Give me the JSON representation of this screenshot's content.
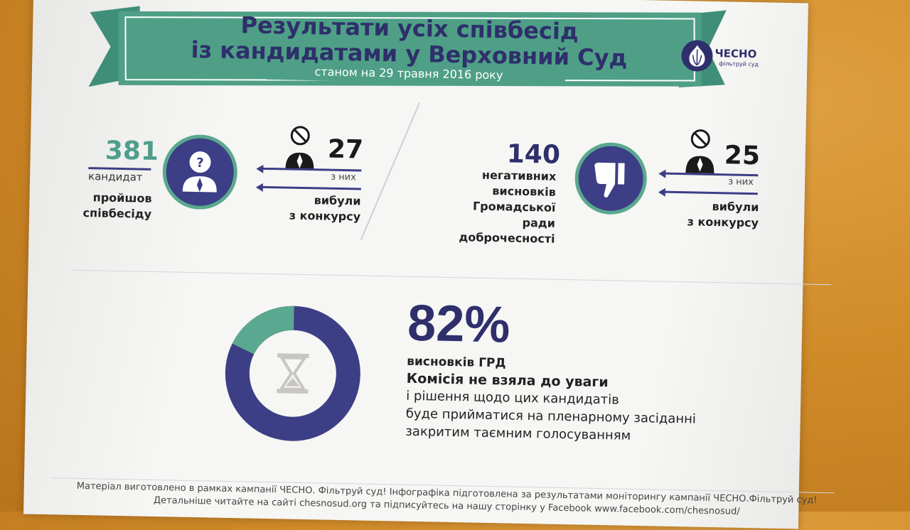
{
  "header": {
    "title_line1": "Результати усіх співбесід",
    "title_line2": "із кандидатами у Верховний Суд",
    "subtitle": "станом на 29 травня 2016 року"
  },
  "logo": {
    "name": "ЧЕСНО",
    "tagline": "фільтруй суд"
  },
  "left_block": {
    "total": "381",
    "total_unit": "кандидат",
    "total_desc_1": "пройшов",
    "total_desc_2": "співбесіду",
    "out_count": "27",
    "out_of": "з них",
    "out_desc_1": "вибули",
    "out_desc_2": "з конкурсу"
  },
  "right_block": {
    "total": "140",
    "desc_1": "негативних",
    "desc_2": "висновків",
    "desc_3": "Громадської ради",
    "desc_4": "доброчесності",
    "out_count": "25",
    "out_of": "з них",
    "out_desc_1": "вибули",
    "out_desc_2": "з конкурсу"
  },
  "donut": {
    "percent_value": 82,
    "percent_label": "82%",
    "line1": "висновків ГРД",
    "line2": "Комісія не взяла до уваги",
    "line3": "і рішення щодо цих кандидатів",
    "line4": "буде прийматися на пленарному засіданні",
    "line5": "закритим таємним голосуванням",
    "colors": {
      "main": "#3c3e86",
      "rest": "#5aa890"
    }
  },
  "footer": {
    "line1": "Матеріал виготовлено в рамках кампанії ЧЕСНО. Фільтруй суд! Інфографіка підготовлена за результатами моніторингу кампанії ЧЕСНО.Фільтруй суд!",
    "line2": "Детальніше читайте на сайті chesnosud.org та підписуйтесь на нашу сторінку у Facebook www.facebook.com/chesnosud/"
  },
  "icons": [
    "question-person-icon",
    "banned-person-icon",
    "thumbs-down-icon",
    "hourglass-icon",
    "garlic-logo-icon"
  ]
}
